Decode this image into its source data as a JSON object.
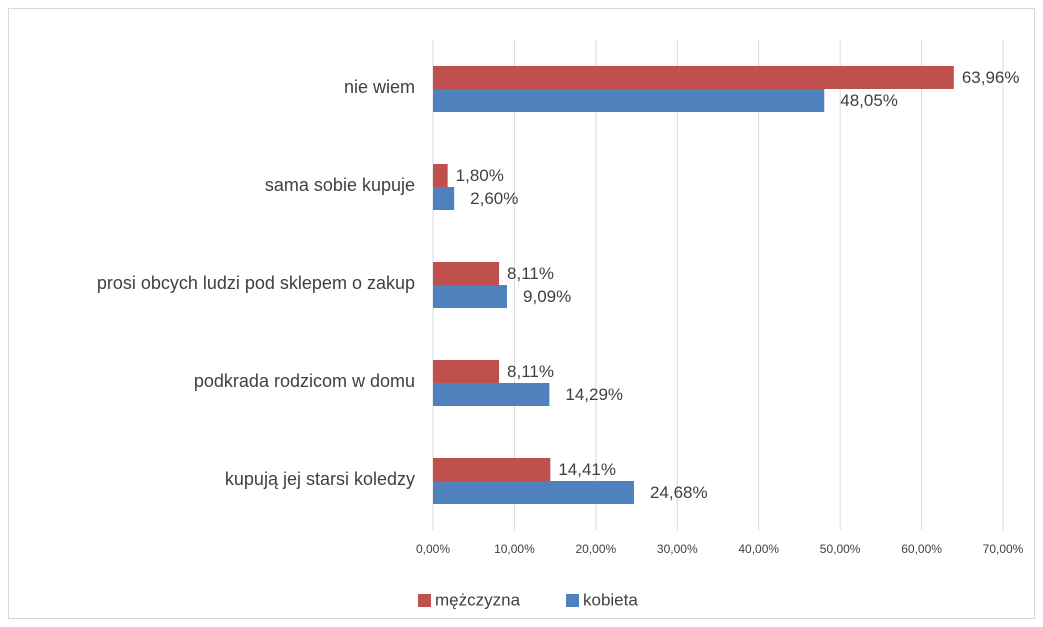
{
  "chart_data": {
    "type": "bar",
    "orientation": "horizontal",
    "categories": [
      "nie wiem",
      "sama sobie kupuje",
      "prosi obcych ludzi pod sklepem o zakup",
      "podkrada rodzicom w domu",
      "kupują jej starsi koledzy"
    ],
    "series": [
      {
        "name": "mężczyzna",
        "color": "#c0504d",
        "values": [
          63.96,
          1.8,
          8.11,
          8.11,
          14.41
        ],
        "value_labels": [
          "63,96%",
          "1,80%",
          "8,11%",
          "8,11%",
          "14,41%"
        ]
      },
      {
        "name": "kobieta",
        "color": "#4f81bd",
        "values": [
          48.05,
          2.6,
          9.09,
          14.29,
          24.68
        ],
        "value_labels": [
          "48,05%",
          "2,60%",
          "9,09%",
          "14,29%",
          "24,68%"
        ]
      }
    ],
    "xlim": [
      0,
      70
    ],
    "xticks": [
      {
        "value": 0,
        "label": "0,00%"
      },
      {
        "value": 10,
        "label": "10,00%"
      },
      {
        "value": 20,
        "label": "20,00%"
      },
      {
        "value": 30,
        "label": "30,00%"
      },
      {
        "value": 40,
        "label": "40,00%"
      },
      {
        "value": 50,
        "label": "50,00%"
      },
      {
        "value": 60,
        "label": "60,00%"
      },
      {
        "value": 70,
        "label": "70,00%"
      }
    ],
    "grid": true,
    "legend": "bottom"
  }
}
